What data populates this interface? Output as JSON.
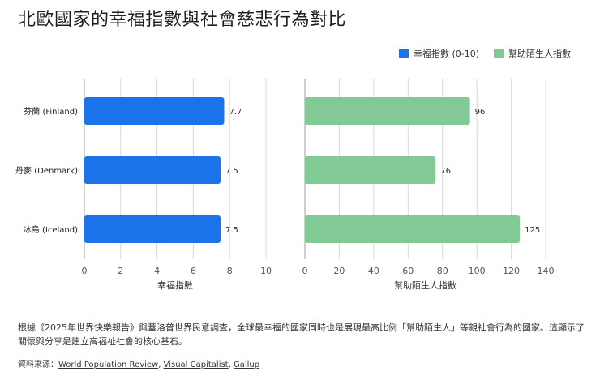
{
  "title": "北歐國家的幸福指數與社會慈悲行為對比",
  "caption": "根據《2025年世界快樂報告》與蓋洛普世界民意調查，全球最幸福的國家同時也是展現最高比例「幫助陌生人」等親社會行為的國家。這顯示了關懷與分享是建立高福祉社會的核心基石。",
  "source": {
    "label": "資料來源：",
    "links": [
      "World Population Review",
      "Visual Capitalist",
      "Gallup"
    ]
  },
  "colors": {
    "happiness": "#1a73e8",
    "helping": "#81c995",
    "grid": "#d9d9d9",
    "axis": "#9e9e9e"
  },
  "chart_data": [
    {
      "type": "bar",
      "orientation": "horizontal",
      "categories": [
        "芬蘭 (Finland)",
        "丹麥 (Denmark)",
        "冰島 (Iceland)"
      ],
      "series": [
        {
          "name": "幸福指數 (0-10)",
          "values": [
            7.7,
            7.5,
            7.5
          ]
        }
      ],
      "data_labels": [
        "7.7",
        "7.5",
        "7.5"
      ],
      "xlabel": "幸福指數",
      "xlim": [
        0,
        10
      ],
      "xticks": [
        "0",
        "2",
        "4",
        "6",
        "8",
        "10"
      ],
      "grid": true
    },
    {
      "type": "bar",
      "orientation": "horizontal",
      "categories": [
        "芬蘭 (Finland)",
        "丹麥 (Denmark)",
        "冰島 (Iceland)"
      ],
      "series": [
        {
          "name": "幫助陌生人指數",
          "values": [
            96,
            76,
            125
          ]
        }
      ],
      "data_labels": [
        "96",
        "76",
        "125"
      ],
      "xlabel": "幫助陌生人指數",
      "xlim": [
        0,
        140
      ],
      "xticks": [
        "0",
        "20",
        "40",
        "60",
        "80",
        "100",
        "120",
        "140"
      ],
      "grid": true
    }
  ],
  "legend": [
    {
      "label": "幸福指數 (0-10)",
      "color": "#1a73e8"
    },
    {
      "label": "幫助陌生人指數",
      "color": "#81c995"
    }
  ]
}
